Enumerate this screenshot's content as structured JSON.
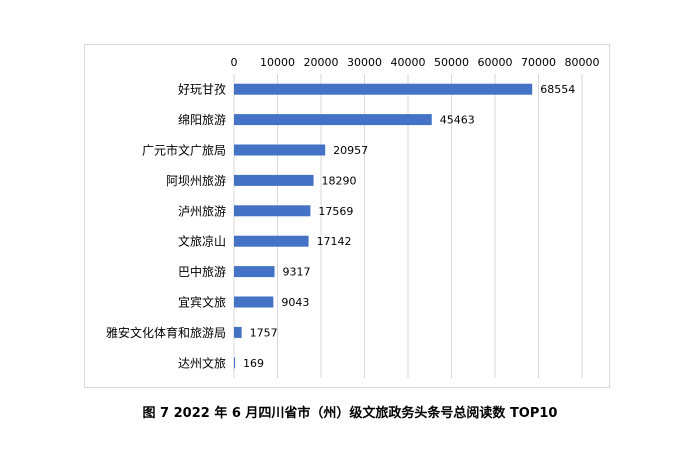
{
  "caption": "图 7  2022 年 6 月四川省市（州）级文旅政务头条号总阅读数 TOP10",
  "colors": {
    "bar": "#4472c4",
    "grid": "#d9d9d9",
    "text": "#000000",
    "frame": "#d9d9d9"
  },
  "chart_data": {
    "type": "bar",
    "orientation": "horizontal",
    "categories": [
      "好玩甘孜",
      "绵阳旅游",
      "广元市文广旅局",
      "阿坝州旅游",
      "泸州旅游",
      "文旅凉山",
      "巴中旅游",
      "宜宾文旅",
      "雅安文化体育和旅游局",
      "达州文旅"
    ],
    "values": [
      68554,
      45463,
      20957,
      18290,
      17569,
      17142,
      9317,
      9043,
      1757,
      169
    ],
    "xlim": [
      0,
      80000
    ],
    "xticks": [
      0,
      10000,
      20000,
      30000,
      40000,
      50000,
      60000,
      70000,
      80000
    ],
    "x_axis_position": "top",
    "grid": true,
    "data_labels": true,
    "legend": "none"
  }
}
